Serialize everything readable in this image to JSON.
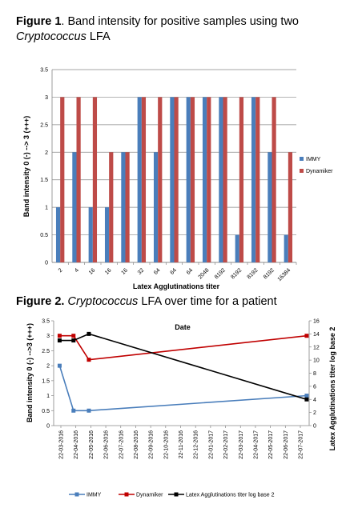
{
  "figure1": {
    "label": "Figure 1",
    "title_plain": ". Band intensity for positive samples using two ",
    "title_italic": "Cryptococcus",
    "title_end": " LFA"
  },
  "figure2": {
    "label": "Figure 2.",
    "title_italic": " Cryptococcus",
    "title_end": " LFA over time for a patient"
  },
  "chart_data": [
    {
      "type": "bar",
      "xlabel": "Latex Agglutinations titer",
      "ylabel": "Band intensity 0 (-) --> 3 (+++)",
      "ylim": [
        0,
        3.5
      ],
      "yticks": [
        "0",
        "0.5",
        "1",
        "1.5",
        "2",
        "2.5",
        "3",
        "3.5"
      ],
      "grid": true,
      "legend_position": "right",
      "categories": [
        "2",
        "4",
        "16",
        "16",
        "16",
        "32",
        "64",
        "64",
        "64",
        "2048",
        "8192",
        "8192",
        "8192",
        "8192",
        "16384"
      ],
      "series": [
        {
          "name": "IMMY",
          "color": "#4a7ebb",
          "values": [
            1,
            2,
            1,
            1,
            2,
            3,
            2,
            3,
            3,
            3,
            3,
            0.5,
            3,
            2,
            0.5
          ]
        },
        {
          "name": "Dynamiker",
          "color": "#be4b48",
          "values": [
            3,
            3,
            3,
            2,
            2,
            3,
            3,
            3,
            3,
            3,
            3,
            3,
            3,
            3,
            2
          ]
        }
      ]
    },
    {
      "type": "line",
      "xlabel": "Date",
      "ylabel": "Band intensity 0 (-) -->3 (+++)",
      "ylabel_right": "Latex Agglutinations titer log base 2",
      "ylim": [
        0,
        3.5
      ],
      "ylim_right": [
        0,
        16
      ],
      "yticks": [
        "0",
        "0.5",
        "1",
        "1.5",
        "2",
        "2.5",
        "3",
        "3.5"
      ],
      "yticks_right": [
        "0",
        "2",
        "4",
        "6",
        "8",
        "10",
        "12",
        "14",
        "16"
      ],
      "grid": false,
      "legend_position": "bottom",
      "x_labels": [
        "22-03-2016",
        "22-04-2016",
        "22-05-2016",
        "22-06-2016",
        "22-07-2016",
        "22-08-2016",
        "22-09-2016",
        "22-10-2016",
        "22-11-2016",
        "22-12-2016",
        "22-01-2017",
        "22-02-2017",
        "22-03-2017",
        "22-04-2017",
        "22-05-2017",
        "22-06-2017",
        "22-07-2017"
      ],
      "series": [
        {
          "name": "IMMY",
          "color": "#4a7ebb",
          "marker": "square",
          "axis": "left",
          "x": [
            "2016-03-22",
            "2016-04-19",
            "2016-05-20",
            "2017-08-02"
          ],
          "values": [
            2,
            0.5,
            0.5,
            1
          ]
        },
        {
          "name": "Dynamiker",
          "color": "#c00000",
          "marker": "square",
          "axis": "left",
          "x": [
            "2016-03-22",
            "2016-04-19",
            "2016-05-20",
            "2017-08-02"
          ],
          "values": [
            3,
            3,
            2.2,
            3
          ]
        },
        {
          "name": "Latex Agglutinations titer log base 2",
          "color": "#000000",
          "marker": "square",
          "axis": "right",
          "x": [
            "2016-03-22",
            "2016-04-19",
            "2016-05-20",
            "2017-08-02"
          ],
          "values": [
            13,
            13,
            14,
            4
          ]
        }
      ]
    }
  ]
}
